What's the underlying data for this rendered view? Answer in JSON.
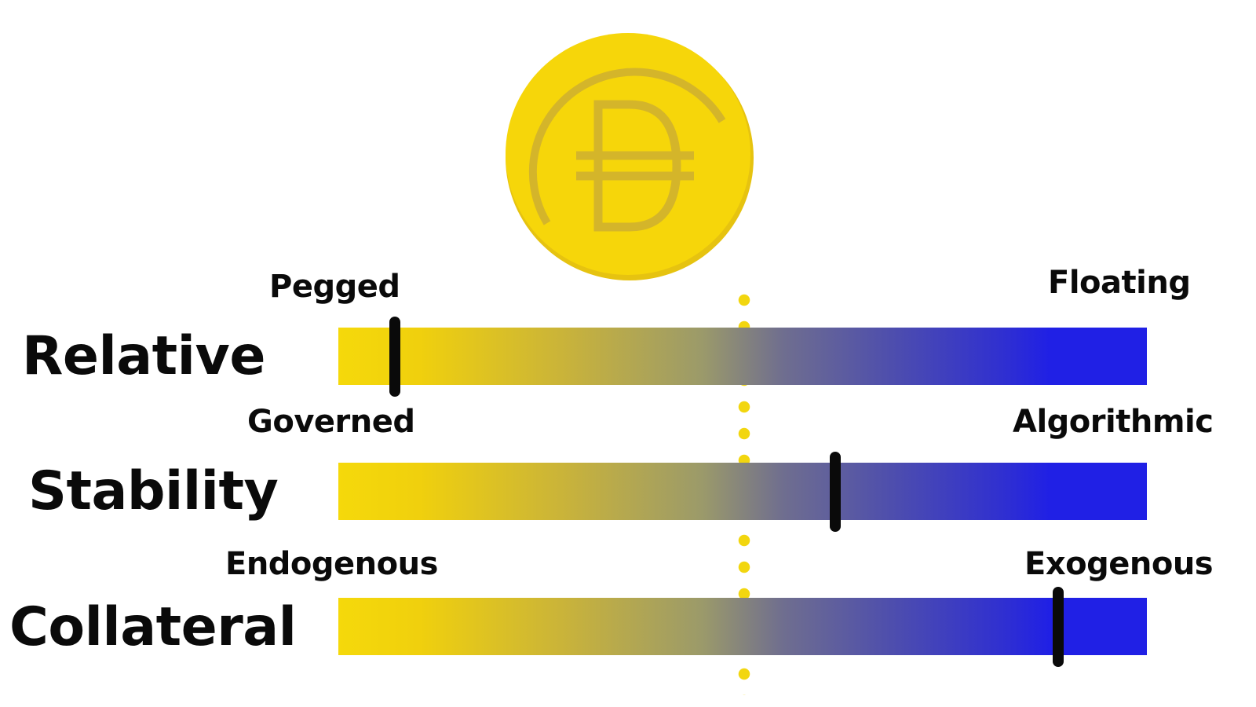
{
  "colors": {
    "coin": "#f6d60a",
    "coin_edge": "#e6c310",
    "coin_symbol": "#d4b52a",
    "spectrum_start": "#f5d90b",
    "spectrum_end": "#2020e5",
    "marker": "#0a0a0a",
    "divider": "#f2d60f"
  },
  "coin": {
    "icon": "dai-coin-icon"
  },
  "rows": [
    {
      "title": "Relative",
      "left_label": "Pegged",
      "right_label": "Floating",
      "position": 0.07
    },
    {
      "title": "Stability",
      "left_label": "Governed",
      "right_label": "Algorithmic",
      "position": 0.615
    },
    {
      "title": "Collateral",
      "left_label": "Endogenous",
      "right_label": "Exogenous",
      "position": 0.89
    }
  ]
}
